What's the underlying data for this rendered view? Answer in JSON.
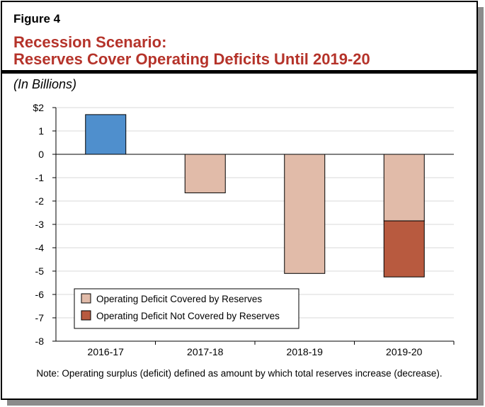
{
  "figure_label": "Figure 4",
  "title_line1": "Recession Scenario:",
  "title_line2": "Reserves Cover Operating Deficits Until 2019-20",
  "units": "(In Billions)",
  "note": "Note: Operating surplus (deficit) defined as amount by which total reserves increase (decrease).",
  "chart_data": {
    "type": "bar",
    "stacked": true,
    "categories": [
      "2016-17",
      "2017-18",
      "2018-19",
      "2019-20"
    ],
    "series": [
      {
        "key": "surplus",
        "values": [
          1.7,
          0,
          0,
          0
        ],
        "color": "#4f8fcd"
      },
      {
        "name": "Operating Deficit Covered by Reserves",
        "values": [
          0,
          -1.65,
          -5.1,
          -2.85
        ],
        "color": "#e1bba9"
      },
      {
        "name": "Operating Deficit Not Covered by Reserves",
        "values": [
          0,
          0,
          0,
          -2.4
        ],
        "color": "#b85a3f"
      }
    ],
    "ylim": [
      -8,
      2
    ],
    "yticks": [
      "$2",
      "1",
      "0",
      "-1",
      "-2",
      "-3",
      "-4",
      "-5",
      "-6",
      "-7",
      "-8"
    ],
    "grid": true,
    "legend": "bottom-left"
  }
}
